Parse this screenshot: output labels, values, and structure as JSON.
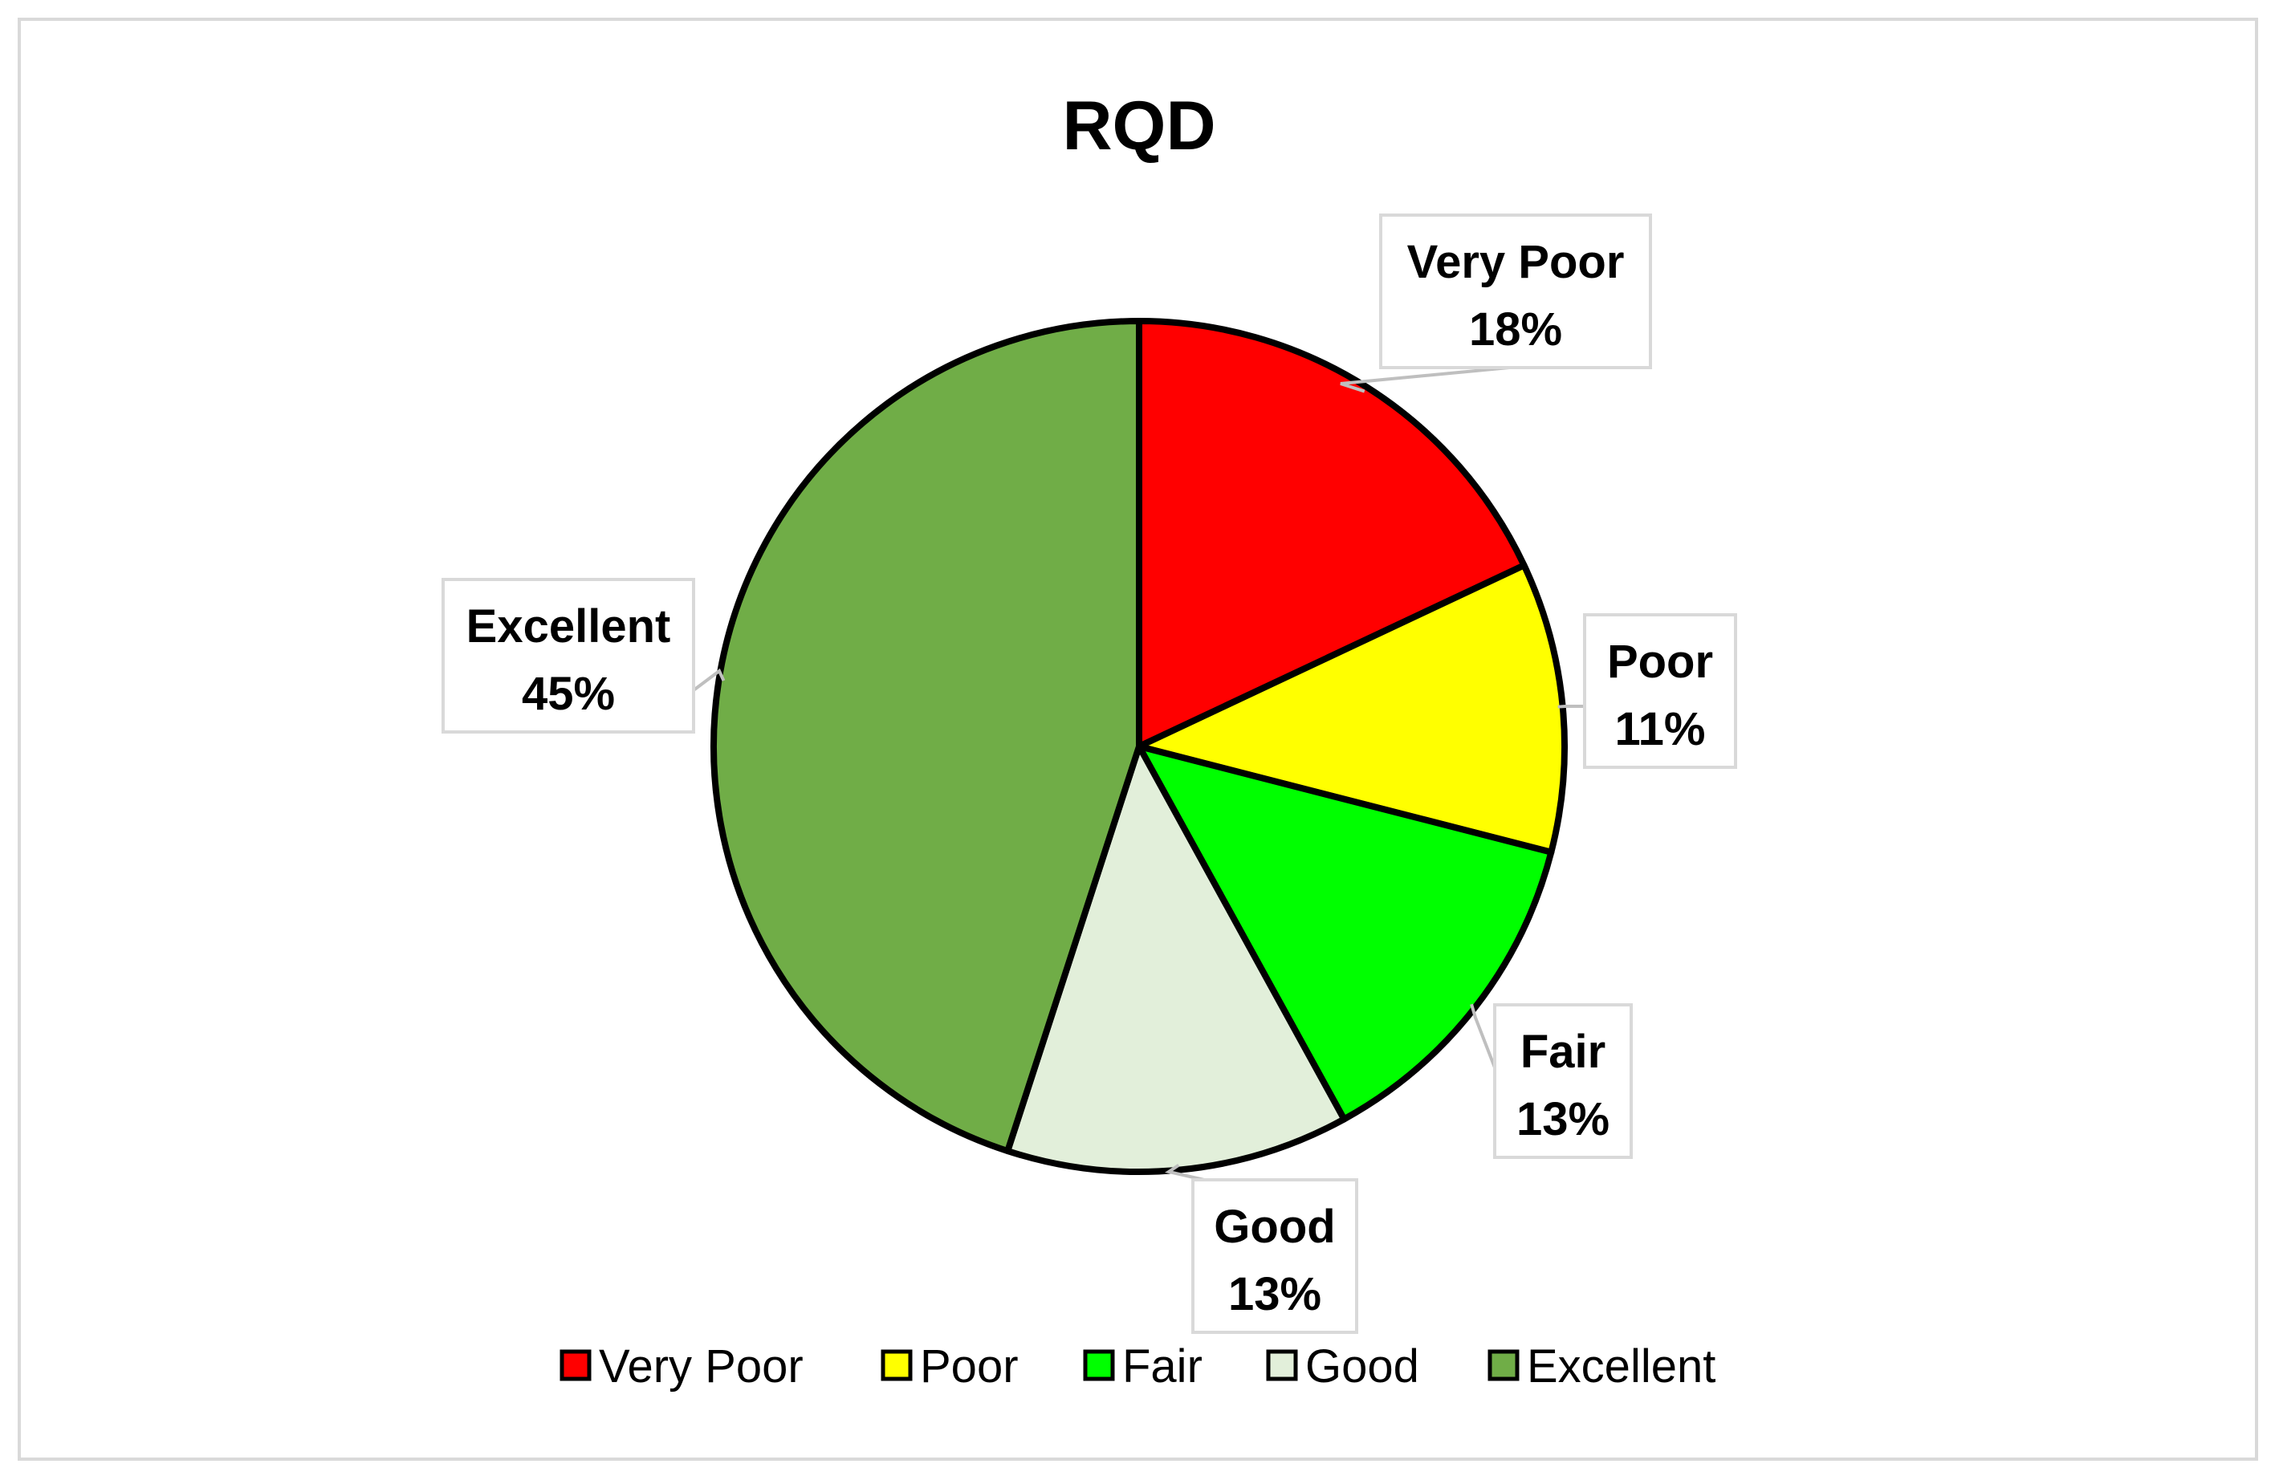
{
  "chart_data": {
    "type": "pie",
    "title": "RQD",
    "categories": [
      "Very Poor",
      "Poor",
      "Fair",
      "Good",
      "Excellent"
    ],
    "values": [
      18,
      11,
      13,
      13,
      45
    ],
    "data_labels": [
      "18%",
      "11%",
      "13%",
      "13%",
      "45%"
    ],
    "colors": [
      "#ff0000",
      "#ffff00",
      "#00ff00",
      "#e2efda",
      "#70ad47"
    ],
    "legend_position": "bottom",
    "start_angle": "12 o'clock, clockwise"
  }
}
